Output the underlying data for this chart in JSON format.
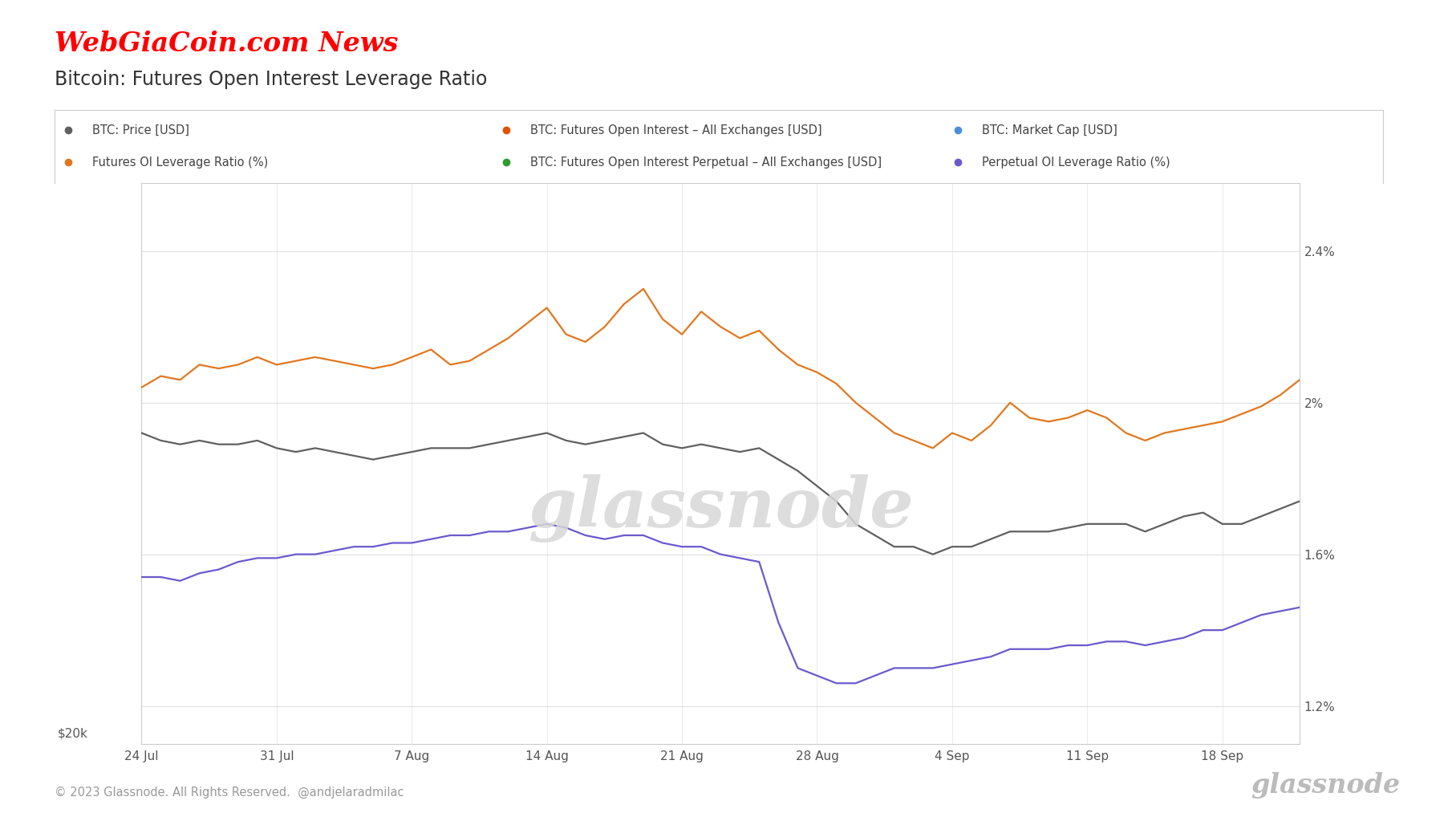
{
  "title": "Bitcoin: Futures Open Interest Leverage Ratio",
  "watermark_text": "WebGiaCoin.com News",
  "footer_left": "© 2023 Glassnode. All Rights Reserved.  @andjelaradmilac",
  "footer_right": "glassnode",
  "background_color": "#ffffff",
  "left_yaxis_label": "$20k",
  "right_ytick_vals": [
    1.2,
    1.6,
    2.0,
    2.4
  ],
  "right_ytick_labels": [
    "1.2%",
    "1.6%",
    "2%",
    "2.4%"
  ],
  "ylim": [
    1.1,
    2.58
  ],
  "xtick_labels": [
    "24 Jul",
    "31 Jul",
    "7 Aug",
    "14 Aug",
    "21 Aug",
    "28 Aug",
    "4 Sep",
    "11 Sep",
    "18 Sep"
  ],
  "xtick_positions": [
    0,
    7,
    14,
    21,
    28,
    35,
    42,
    49,
    56
  ],
  "xlim": [
    0,
    60
  ],
  "legend_row1": [
    {
      "label": "BTC: Price [USD]",
      "color": "#606060",
      "dot": true
    },
    {
      "label": "BTC: Futures Open Interest – All Exchanges [USD]",
      "color": "#e05000",
      "dot": true,
      "strikethrough": true
    },
    {
      "label": "BTC: Market Cap [USD]",
      "color": "#4a90d9",
      "dot": true,
      "strikethrough": true
    }
  ],
  "legend_row2": [
    {
      "label": "Futures OI Leverage Ratio (%)",
      "color": "#e07820",
      "dot": true
    },
    {
      "label": "BTC: Futures Open Interest Perpetual – All Exchanges [USD]",
      "color": "#2a9d2a",
      "dot": true,
      "strikethrough": true
    },
    {
      "label": "Perpetual OI Leverage Ratio (%)",
      "color": "#6a5acd",
      "dot": true
    }
  ],
  "orange_line_y": [
    2.04,
    2.07,
    2.06,
    2.1,
    2.09,
    2.1,
    2.12,
    2.1,
    2.11,
    2.12,
    2.11,
    2.1,
    2.09,
    2.1,
    2.12,
    2.14,
    2.1,
    2.11,
    2.14,
    2.17,
    2.21,
    2.25,
    2.18,
    2.16,
    2.2,
    2.26,
    2.3,
    2.22,
    2.18,
    2.24,
    2.2,
    2.17,
    2.19,
    2.14,
    2.1,
    2.08,
    2.05,
    2.0,
    1.96,
    1.92,
    1.9,
    1.88,
    1.92,
    1.9,
    1.94,
    2.0,
    1.96,
    1.95,
    1.96,
    1.98,
    1.96,
    1.92,
    1.9,
    1.92,
    1.93,
    1.94,
    1.95,
    1.97,
    1.99,
    2.02,
    2.06
  ],
  "gray_line_y": [
    1.92,
    1.9,
    1.89,
    1.9,
    1.89,
    1.89,
    1.9,
    1.88,
    1.87,
    1.88,
    1.87,
    1.86,
    1.85,
    1.86,
    1.87,
    1.88,
    1.88,
    1.88,
    1.89,
    1.9,
    1.91,
    1.92,
    1.9,
    1.89,
    1.9,
    1.91,
    1.92,
    1.89,
    1.88,
    1.89,
    1.88,
    1.87,
    1.88,
    1.85,
    1.82,
    1.78,
    1.74,
    1.68,
    1.65,
    1.62,
    1.62,
    1.6,
    1.62,
    1.62,
    1.64,
    1.66,
    1.66,
    1.66,
    1.67,
    1.68,
    1.68,
    1.68,
    1.66,
    1.68,
    1.7,
    1.71,
    1.68,
    1.68,
    1.7,
    1.72,
    1.74
  ],
  "purple_line_y": [
    1.54,
    1.54,
    1.53,
    1.55,
    1.56,
    1.58,
    1.59,
    1.59,
    1.6,
    1.6,
    1.61,
    1.62,
    1.62,
    1.63,
    1.63,
    1.64,
    1.65,
    1.65,
    1.66,
    1.66,
    1.67,
    1.68,
    1.67,
    1.65,
    1.64,
    1.65,
    1.65,
    1.63,
    1.62,
    1.62,
    1.6,
    1.59,
    1.58,
    1.42,
    1.3,
    1.28,
    1.26,
    1.26,
    1.28,
    1.3,
    1.3,
    1.3,
    1.31,
    1.32,
    1.33,
    1.35,
    1.35,
    1.35,
    1.36,
    1.36,
    1.37,
    1.37,
    1.36,
    1.37,
    1.38,
    1.4,
    1.4,
    1.42,
    1.44,
    1.45,
    1.46
  ]
}
